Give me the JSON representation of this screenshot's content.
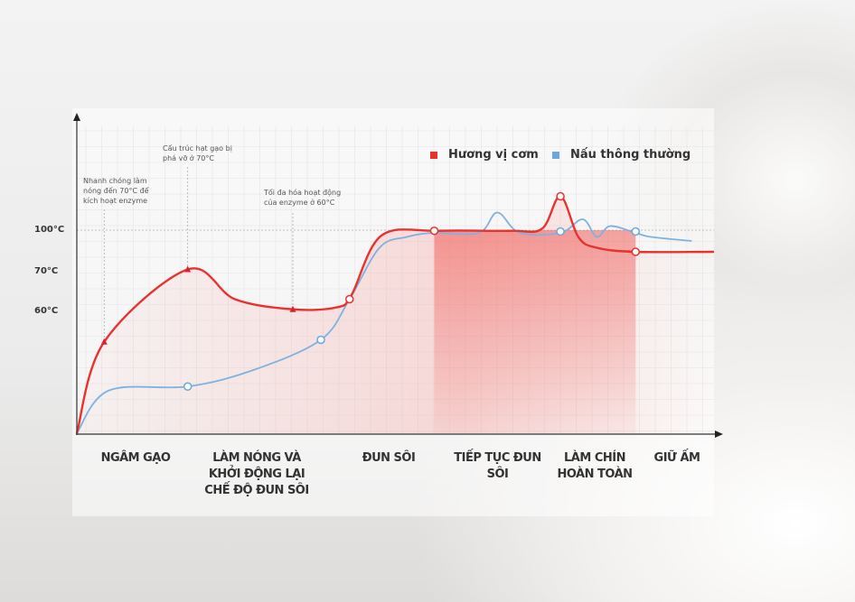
{
  "chart_data": {
    "type": "line",
    "yticks": [
      {
        "label": "100°C",
        "value": 100
      },
      {
        "label": "70°C",
        "value": 70
      },
      {
        "label": "60°C",
        "value": 60
      }
    ],
    "phases": [
      "NGÂM GẠO",
      "LÀM NÓNG VÀ KHỞI ĐỘNG LẠI CHẾ ĐỘ ĐUN SÔI",
      "ĐUN SÔI",
      "TIẾP TỤC ĐUN SÔI",
      "LÀM CHÍN HOÀN TOÀN",
      "GIỮ ẤM"
    ],
    "annotations": [
      "Nhanh chóng làm nóng đến 70°C để kích hoạt enzyme",
      "Cấu trúc hạt gạo bị phá vỡ ở 70°C",
      "Tối đa hóa hoạt động của enzyme ở 60°C"
    ],
    "grid": true,
    "legend_position": "top-right",
    "series": [
      {
        "name": "Hương vị cơm",
        "color": "#e8322e",
        "points": [
          [
            0,
            0
          ],
          [
            4.3,
            45
          ],
          [
            17.4,
            71
          ],
          [
            24.8,
            63
          ],
          [
            33.9,
            60.5
          ],
          [
            40.8,
            61
          ],
          [
            43.1,
            64
          ],
          [
            47.8,
            96
          ],
          [
            56.7,
            99.5
          ],
          [
            68,
            99.5
          ],
          [
            73,
            101
          ],
          [
            75.9,
            125
          ],
          [
            78.7,
            95
          ],
          [
            81.6,
            87
          ],
          [
            87.7,
            84
          ],
          [
            100,
            84
          ]
        ],
        "markers": [
          {
            "t": 4.3,
            "v": 45,
            "shape": "triangle"
          },
          {
            "t": 17.4,
            "v": 71,
            "shape": "triangle"
          },
          {
            "t": 33.9,
            "v": 60.5,
            "shape": "triangle"
          },
          {
            "t": 42.8,
            "v": 63,
            "shape": "circle"
          },
          {
            "t": 56.1,
            "v": 99.5,
            "shape": "circle"
          },
          {
            "t": 75.9,
            "v": 125,
            "shape": "circle"
          },
          {
            "t": 87.7,
            "v": 84,
            "shape": "circle"
          }
        ]
      },
      {
        "name": "Nấu thông thường",
        "color": "#7fb2e0",
        "points": [
          [
            0,
            0
          ],
          [
            5,
            21
          ],
          [
            17.4,
            23
          ],
          [
            27.6,
            31
          ],
          [
            38.3,
            46
          ],
          [
            42.8,
            63
          ],
          [
            47.5,
            87
          ],
          [
            51.8,
            95
          ],
          [
            56.1,
            98
          ],
          [
            63.1,
            98
          ],
          [
            66,
            113
          ],
          [
            69.5,
            98
          ],
          [
            75.9,
            98
          ],
          [
            79.4,
            108
          ],
          [
            81.6,
            95
          ],
          [
            83.7,
            103
          ],
          [
            87.7,
            98
          ],
          [
            90.1,
            95
          ],
          [
            96.5,
            92
          ]
        ],
        "markers": [
          {
            "t": 17.4,
            "v": 23,
            "shape": "circle"
          },
          {
            "t": 38.3,
            "v": 46,
            "shape": "circle"
          },
          {
            "t": 75.9,
            "v": 99,
            "shape": "circle"
          },
          {
            "t": 87.7,
            "v": 99,
            "shape": "circle"
          }
        ]
      }
    ]
  }
}
